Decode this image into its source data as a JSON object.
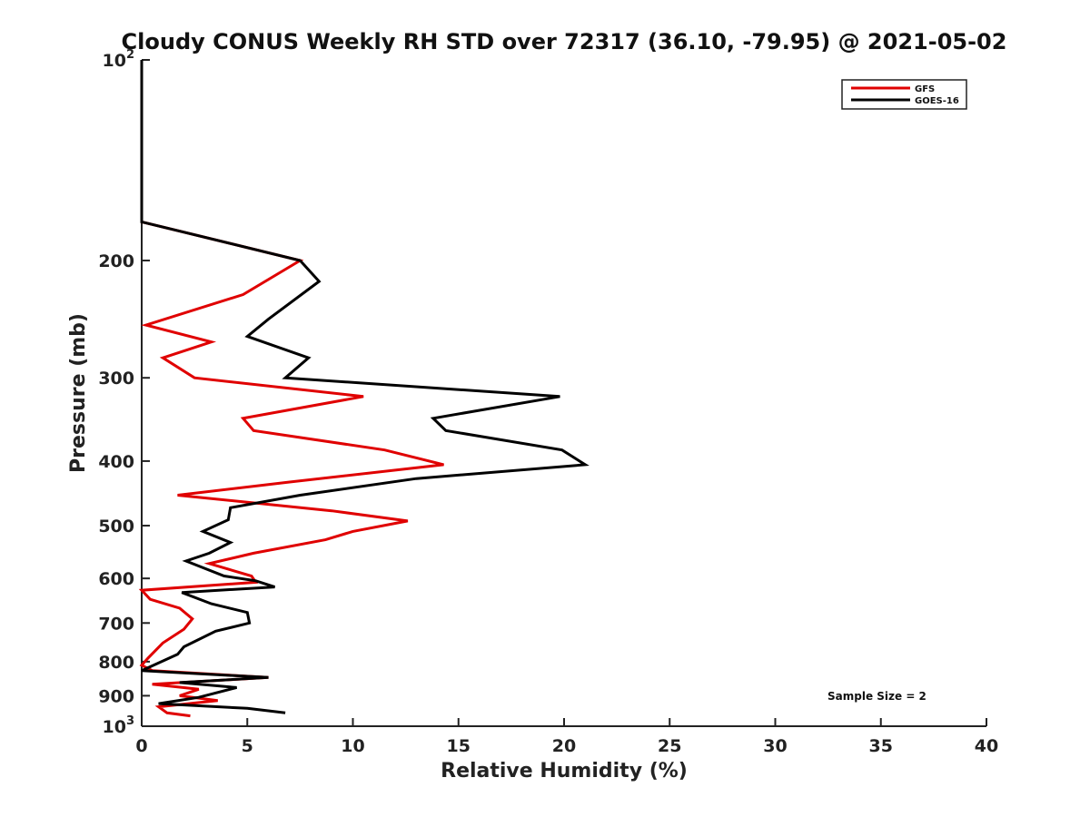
{
  "chart_data": {
    "type": "line",
    "title": "Cloudy CONUS Weekly RH STD over 72317 (36.10, -79.95) @ 2021-05-02",
    "xlabel": "Relative Humidity (%)",
    "ylabel": "Pressure (mb)",
    "xlim": [
      0,
      40
    ],
    "ylim": [
      100,
      1000
    ],
    "y_scale": "log",
    "y_reversed": true,
    "x_ticks": [
      "0",
      "5",
      "10",
      "15",
      "20",
      "25",
      "30",
      "35",
      "40"
    ],
    "y_ticks": [
      {
        "value": 100,
        "base": "10",
        "exp": "2"
      },
      {
        "value": 200,
        "label": "200"
      },
      {
        "value": 300,
        "label": "300"
      },
      {
        "value": 400,
        "label": "400"
      },
      {
        "value": 500,
        "label": "500"
      },
      {
        "value": 600,
        "label": "600"
      },
      {
        "value": 700,
        "label": "700"
      },
      {
        "value": 800,
        "label": "800"
      },
      {
        "value": 900,
        "label": "900"
      },
      {
        "value": 1000,
        "base": "10",
        "exp": "3"
      }
    ],
    "grid": false,
    "legend_position": "top-right",
    "annotation": "Sample Size = 2",
    "series": [
      {
        "name": "GFS",
        "color": "#e00000",
        "points": [
          [
            0,
            100
          ],
          [
            0,
            175
          ],
          [
            7.5,
            200
          ],
          [
            4.8,
            225
          ],
          [
            0.2,
            250
          ],
          [
            3.3,
            265
          ],
          [
            1.0,
            280
          ],
          [
            2.5,
            300
          ],
          [
            10.5,
            320
          ],
          [
            4.8,
            345
          ],
          [
            5.3,
            360
          ],
          [
            11.5,
            385
          ],
          [
            14.3,
            405
          ],
          [
            7.0,
            430
          ],
          [
            1.7,
            450
          ],
          [
            9.0,
            475
          ],
          [
            12.6,
            492
          ],
          [
            10.0,
            510
          ],
          [
            8.7,
            525
          ],
          [
            5.3,
            550
          ],
          [
            3.2,
            570
          ],
          [
            5.2,
            595
          ],
          [
            5.4,
            608
          ],
          [
            0,
            625
          ],
          [
            0.4,
            645
          ],
          [
            1.8,
            665
          ],
          [
            2.4,
            690
          ],
          [
            2.0,
            715
          ],
          [
            1.0,
            750
          ],
          [
            0.3,
            790
          ],
          [
            0,
            810
          ],
          [
            0.5,
            825
          ],
          [
            6.0,
            845
          ],
          [
            0.5,
            865
          ],
          [
            2.7,
            880
          ],
          [
            1.8,
            900
          ],
          [
            3.6,
            915
          ],
          [
            0.8,
            935
          ],
          [
            1.2,
            955
          ],
          [
            2.3,
            965
          ]
        ]
      },
      {
        "name": "GOES-16",
        "color": "#000000",
        "points": [
          [
            0,
            100
          ],
          [
            0,
            175
          ],
          [
            7.5,
            200
          ],
          [
            8.4,
            215
          ],
          [
            6.0,
            245
          ],
          [
            5.0,
            260
          ],
          [
            7.9,
            280
          ],
          [
            6.8,
            300
          ],
          [
            19.8,
            320
          ],
          [
            13.8,
            345
          ],
          [
            14.4,
            360
          ],
          [
            19.9,
            385
          ],
          [
            21.0,
            405
          ],
          [
            13.0,
            425
          ],
          [
            7.5,
            450
          ],
          [
            4.2,
            470
          ],
          [
            4.1,
            490
          ],
          [
            2.9,
            510
          ],
          [
            4.2,
            530
          ],
          [
            3.2,
            550
          ],
          [
            2.1,
            565
          ],
          [
            3.9,
            595
          ],
          [
            5.4,
            605
          ],
          [
            6.3,
            618
          ],
          [
            1.9,
            630
          ],
          [
            3.3,
            655
          ],
          [
            5.0,
            675
          ],
          [
            5.1,
            700
          ],
          [
            3.5,
            720
          ],
          [
            2.0,
            760
          ],
          [
            1.7,
            780
          ],
          [
            0,
            825
          ],
          [
            6.0,
            845
          ],
          [
            1.8,
            860
          ],
          [
            4.5,
            875
          ],
          [
            2.7,
            905
          ],
          [
            0.8,
            925
          ],
          [
            5.0,
            940
          ],
          [
            6.8,
            955
          ]
        ]
      }
    ]
  }
}
